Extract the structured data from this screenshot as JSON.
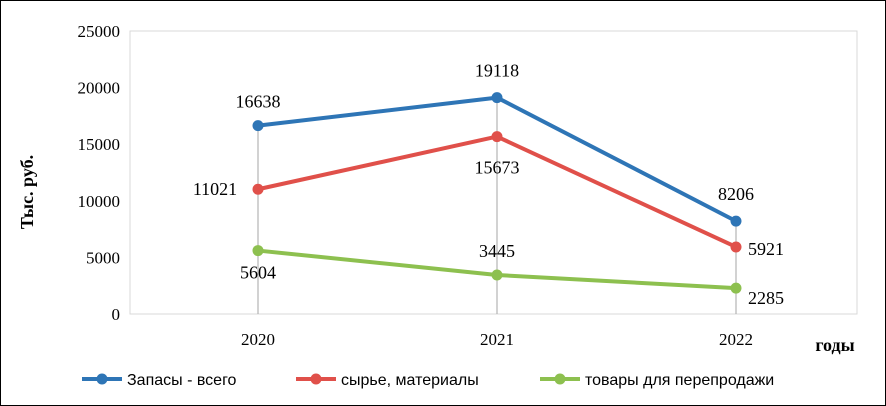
{
  "chart_data": {
    "type": "line",
    "categories": [
      "2020",
      "2021",
      "2022"
    ],
    "series": [
      {
        "name": "Запасы - всего",
        "values": [
          16638,
          19118,
          8206
        ],
        "color": "#2E75B6"
      },
      {
        "name": "сырье, материалы",
        "values": [
          11021,
          15673,
          5921
        ],
        "color": "#E0504A"
      },
      {
        "name": "товары для перепродажи",
        "values": [
          5604,
          3445,
          2285
        ],
        "color": "#8DC04F"
      }
    ],
    "xlabel": "годы",
    "ylabel": "Тыс. руб.",
    "ylim": [
      0,
      25000
    ],
    "yticks": [
      "0",
      "5000",
      "10000",
      "15000",
      "20000",
      "25000"
    ],
    "grid": "vertical drop lines at categories",
    "legend_position": "bottom"
  }
}
